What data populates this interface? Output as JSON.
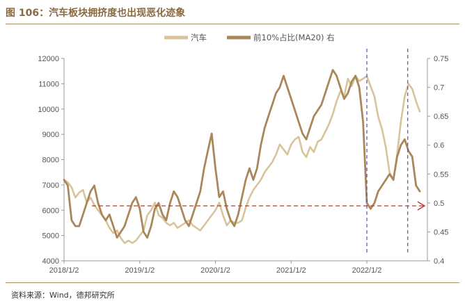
{
  "page": {
    "title": "图 106：汽车板块拥挤度也出现恶化迹象",
    "source": "资料来源：Wind，德邦研究所"
  },
  "chart_data": {
    "type": "line",
    "title": "图 106：汽车板块拥挤度也出现恶化迹象",
    "xlabel": "",
    "ylabel": "",
    "legend_position": "top-center",
    "grid": false,
    "x_ticks": [
      "2018/1/2",
      "2019/1/2",
      "2020/1/2",
      "2021/1/2",
      "2022/1/2"
    ],
    "y_left": {
      "min": 4000,
      "max": 12000,
      "ticks": [
        "4000",
        "5000",
        "6000",
        "7000",
        "8000",
        "9000",
        "10000",
        "11000",
        "12000"
      ]
    },
    "y_right": {
      "min": 0.4,
      "max": 0.75,
      "ticks": [
        "0.4",
        "0.45",
        "0.5",
        "0.55",
        "0.6",
        "0.65",
        "0.7",
        "0.75"
      ]
    },
    "reference_line": {
      "axis": "right",
      "value": 0.495,
      "color": "#c0392b",
      "style": "dashed-arrow"
    },
    "vertical_markers": {
      "color": "#5a4fa0",
      "style": "dashed",
      "dates": [
        2022.0,
        2022.54
      ]
    },
    "series": [
      {
        "name": "汽车",
        "axis": "left",
        "color": "#d9c39a",
        "x": [
          2018.0,
          2018.05,
          2018.1,
          2018.15,
          2018.2,
          2018.25,
          2018.3,
          2018.35,
          2018.4,
          2018.45,
          2018.5,
          2018.55,
          2018.6,
          2018.65,
          2018.7,
          2018.75,
          2018.8,
          2018.85,
          2018.9,
          2018.95,
          2019.0,
          2019.05,
          2019.1,
          2019.15,
          2019.2,
          2019.25,
          2019.3,
          2019.35,
          2019.4,
          2019.45,
          2019.5,
          2019.55,
          2019.6,
          2019.65,
          2019.7,
          2019.75,
          2019.8,
          2019.85,
          2019.9,
          2019.95,
          2020.0,
          2020.05,
          2020.1,
          2020.15,
          2020.2,
          2020.25,
          2020.3,
          2020.35,
          2020.4,
          2020.45,
          2020.5,
          2020.55,
          2020.6,
          2020.65,
          2020.7,
          2020.75,
          2020.8,
          2020.85,
          2020.9,
          2020.95,
          2021.0,
          2021.05,
          2021.1,
          2021.15,
          2021.2,
          2021.25,
          2021.3,
          2021.35,
          2021.4,
          2021.45,
          2021.5,
          2021.55,
          2021.6,
          2021.65,
          2021.7,
          2021.75,
          2021.8,
          2021.85,
          2021.9,
          2021.95,
          2022.0,
          2022.05,
          2022.1,
          2022.15,
          2022.2,
          2022.25,
          2022.3,
          2022.35,
          2022.4,
          2022.45,
          2022.5,
          2022.55,
          2022.6,
          2022.65,
          2022.7
        ],
        "values": [
          7200,
          7100,
          6900,
          6500,
          6700,
          6800,
          6300,
          6500,
          6200,
          6000,
          5800,
          5600,
          5300,
          5100,
          5200,
          4900,
          4700,
          4800,
          4700,
          4800,
          5000,
          5200,
          5800,
          6000,
          6300,
          5800,
          5700,
          5500,
          5400,
          5500,
          5300,
          5400,
          5500,
          5600,
          5400,
          5300,
          5200,
          5400,
          5600,
          5800,
          6000,
          6300,
          5800,
          5400,
          5600,
          5500,
          5500,
          5600,
          6100,
          6500,
          6800,
          7000,
          7200,
          7500,
          7700,
          7900,
          8200,
          8600,
          8400,
          8200,
          8600,
          8800,
          8900,
          8300,
          8100,
          8500,
          8300,
          8700,
          8800,
          9100,
          9400,
          9800,
          10300,
          10700,
          10500,
          11200,
          10900,
          11300,
          11100,
          11200,
          11300,
          10900,
          10500,
          9700,
          9200,
          8500,
          7500,
          7200,
          8200,
          9500,
          10500,
          11000,
          10800,
          10300,
          9900
        ]
      },
      {
        "name": "前10%占比(MA20) 右",
        "axis": "right",
        "color": "#a9875b",
        "x": [
          2018.0,
          2018.05,
          2018.1,
          2018.15,
          2018.2,
          2018.25,
          2018.3,
          2018.35,
          2018.4,
          2018.45,
          2018.5,
          2018.55,
          2018.6,
          2018.65,
          2018.7,
          2018.75,
          2018.8,
          2018.85,
          2018.9,
          2018.95,
          2019.0,
          2019.05,
          2019.1,
          2019.15,
          2019.2,
          2019.25,
          2019.3,
          2019.35,
          2019.4,
          2019.45,
          2019.5,
          2019.55,
          2019.6,
          2019.65,
          2019.7,
          2019.75,
          2019.8,
          2019.85,
          2019.9,
          2019.95,
          2020.0,
          2020.05,
          2020.1,
          2020.15,
          2020.2,
          2020.25,
          2020.3,
          2020.35,
          2020.4,
          2020.45,
          2020.5,
          2020.55,
          2020.6,
          2020.65,
          2020.7,
          2020.75,
          2020.8,
          2020.85,
          2020.9,
          2020.95,
          2021.0,
          2021.05,
          2021.1,
          2021.15,
          2021.2,
          2021.25,
          2021.3,
          2021.35,
          2021.4,
          2021.45,
          2021.5,
          2021.55,
          2021.6,
          2021.65,
          2021.7,
          2021.75,
          2021.8,
          2021.85,
          2021.9,
          2021.95,
          2022.0,
          2022.05,
          2022.1,
          2022.15,
          2022.2,
          2022.25,
          2022.3,
          2022.35,
          2022.4,
          2022.45,
          2022.5,
          2022.55,
          2022.6,
          2022.65,
          2022.7
        ],
        "values": [
          0.54,
          0.53,
          0.47,
          0.46,
          0.46,
          0.48,
          0.5,
          0.52,
          0.53,
          0.5,
          0.48,
          0.47,
          0.48,
          0.46,
          0.44,
          0.45,
          0.46,
          0.48,
          0.5,
          0.51,
          0.49,
          0.45,
          0.44,
          0.46,
          0.49,
          0.5,
          0.48,
          0.47,
          0.5,
          0.52,
          0.51,
          0.49,
          0.47,
          0.46,
          0.48,
          0.5,
          0.52,
          0.56,
          0.59,
          0.62,
          0.56,
          0.51,
          0.52,
          0.49,
          0.47,
          0.46,
          0.48,
          0.51,
          0.54,
          0.56,
          0.54,
          0.56,
          0.6,
          0.63,
          0.65,
          0.67,
          0.69,
          0.7,
          0.72,
          0.7,
          0.68,
          0.66,
          0.64,
          0.62,
          0.61,
          0.63,
          0.65,
          0.66,
          0.67,
          0.69,
          0.71,
          0.73,
          0.72,
          0.7,
          0.68,
          0.69,
          0.71,
          0.72,
          0.7,
          0.64,
          0.5,
          0.49,
          0.5,
          0.52,
          0.53,
          0.54,
          0.55,
          0.54,
          0.58,
          0.6,
          0.61,
          0.59,
          0.58,
          0.53,
          0.52
        ]
      }
    ]
  }
}
